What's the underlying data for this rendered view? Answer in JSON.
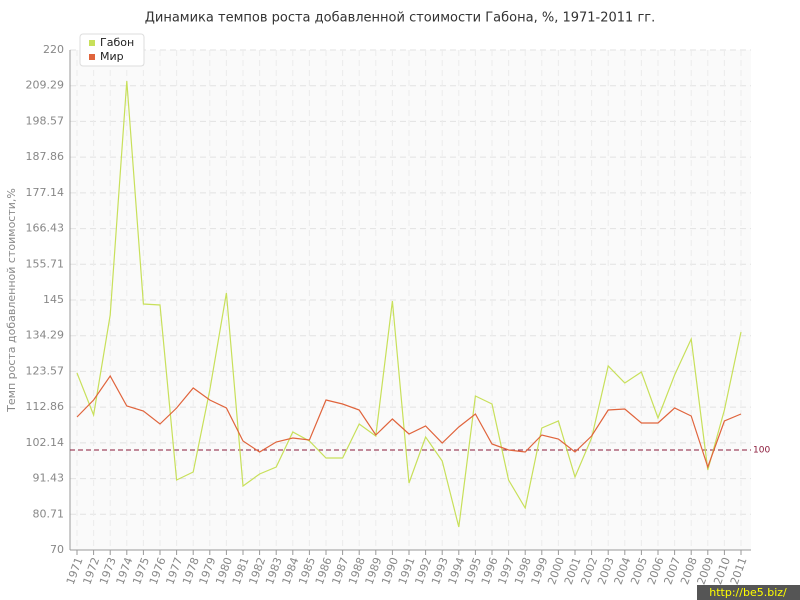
{
  "chart_data": {
    "type": "line",
    "title": "Динамика темпов роста добавленной стоимости Габона, %, 1971-2011 гг.",
    "ylabel": "Темп роста добавленной стоимости,%",
    "watermark": "http://be5.biz/",
    "categories": [
      "1971",
      "1972",
      "1973",
      "1974",
      "1975",
      "1976",
      "1977",
      "1978",
      "1979",
      "1980",
      "1981",
      "1982",
      "1983",
      "1984",
      "1985",
      "1986",
      "1987",
      "1988",
      "1989",
      "1990",
      "1991",
      "1992",
      "1993",
      "1994",
      "1995",
      "1996",
      "1997",
      "1998",
      "1999",
      "2000",
      "2001",
      "2002",
      "2003",
      "2004",
      "2005",
      "2006",
      "2007",
      "2008",
      "2009",
      "2010",
      "2011"
    ],
    "series": [
      {
        "name": "Габон",
        "color": "#c8e05a",
        "values": [
          123.1,
          110.5,
          140.5,
          210.7,
          143.8,
          143.5,
          91,
          93.4,
          118,
          147.1,
          89.2,
          92.8,
          94.9,
          105.4,
          102.7,
          97.6,
          97.6,
          107.8,
          104.2,
          144.7,
          90.1,
          103.9,
          96.7,
          76.9,
          116.2,
          113.8,
          91,
          82.6,
          106.6,
          108.7,
          91.9,
          103.6,
          125.2,
          120.1,
          123.4,
          109.6,
          122.5,
          133.3,
          94,
          112,
          135.4
        ]
      },
      {
        "name": "Мир",
        "color": "#e0643c",
        "values": [
          109.9,
          115,
          122.2,
          113.2,
          111.7,
          107.8,
          112.6,
          118.6,
          115,
          112.6,
          102.7,
          99.4,
          102.4,
          103.6,
          103,
          115,
          113.8,
          112,
          104.5,
          109.3,
          104.8,
          107.2,
          102.1,
          106.9,
          110.8,
          101.8,
          100,
          99.4,
          104.5,
          103.3,
          99.4,
          104.2,
          112,
          112.3,
          108.1,
          108.1,
          112.6,
          110.2,
          94.9,
          108.7,
          110.8
        ]
      }
    ],
    "ylim": [
      70,
      220
    ],
    "yticks": [
      70,
      80.71,
      91.43,
      102.14,
      112.86,
      123.57,
      134.29,
      145,
      155.71,
      166.43,
      177.14,
      187.86,
      198.57,
      209.29,
      220
    ],
    "reference_line": 100,
    "reference_color": "#8b1a3a",
    "grid": true,
    "legend": "upper-left"
  }
}
